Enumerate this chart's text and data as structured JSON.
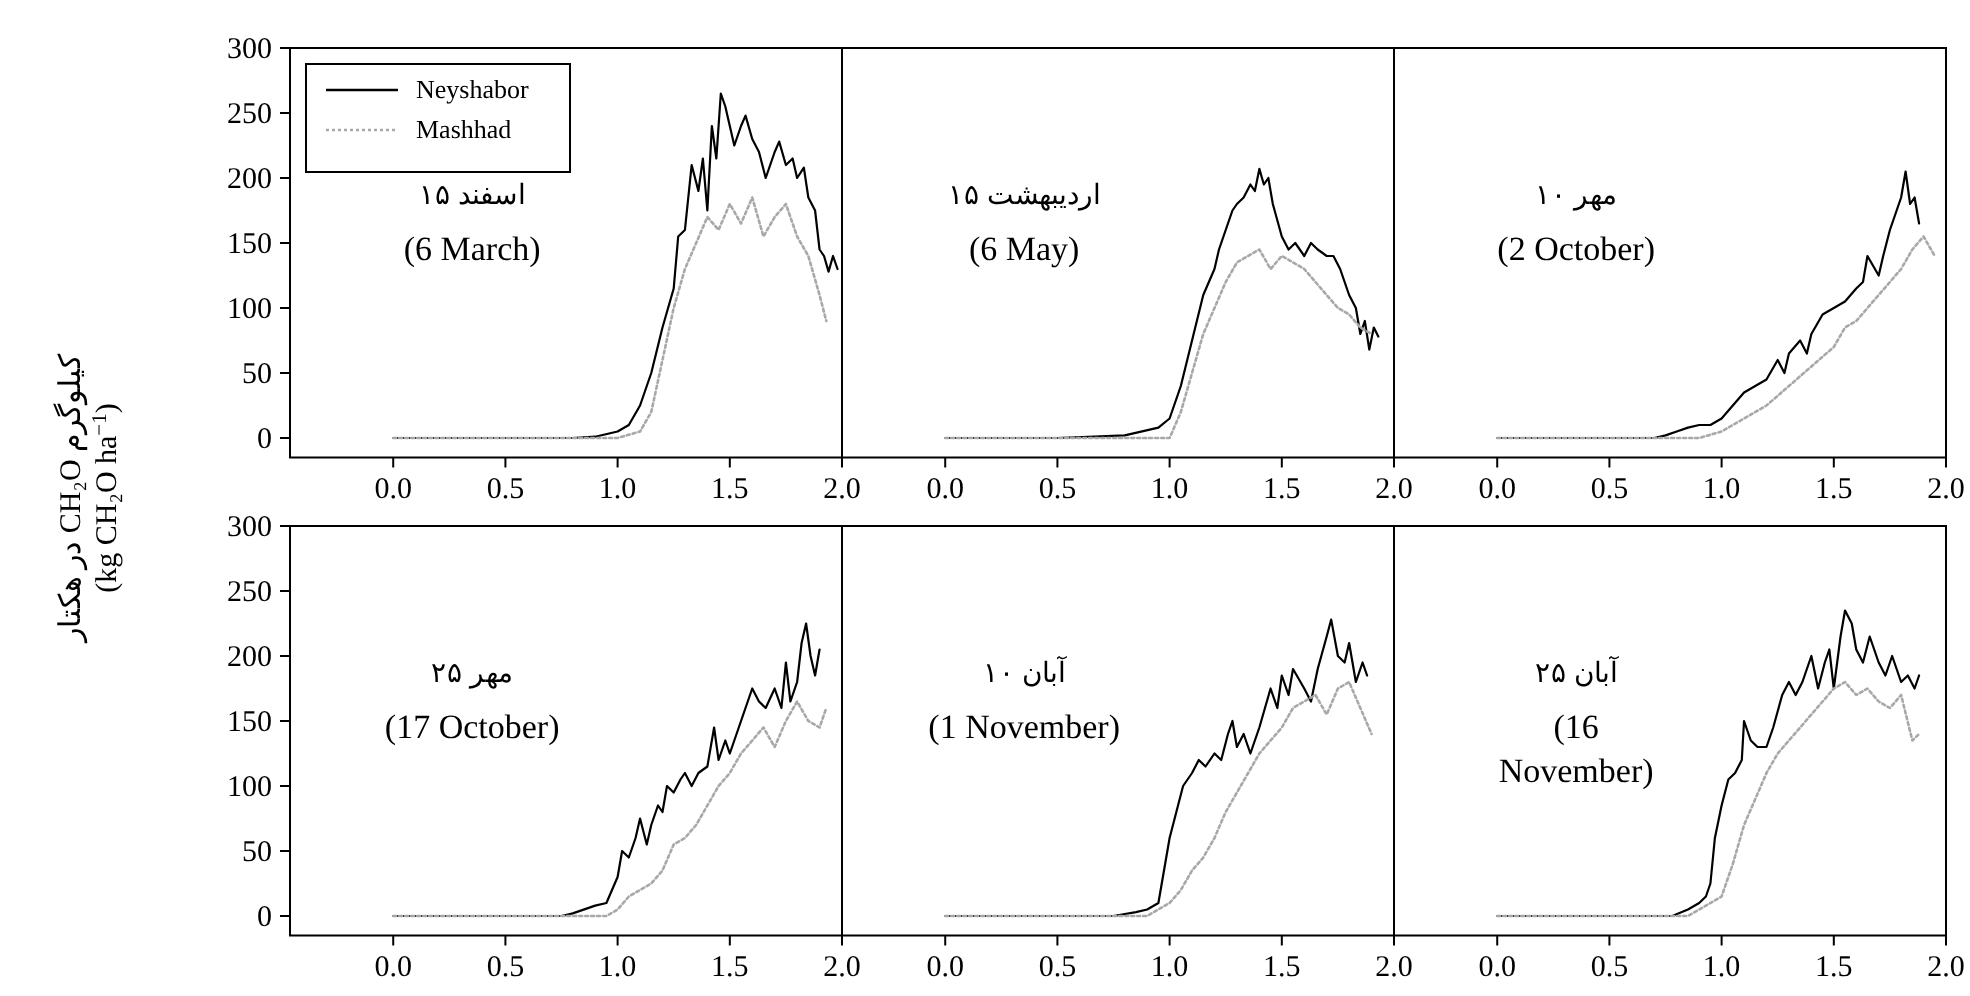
{
  "chart_data": [
    {
      "type": "line",
      "ylabel": "کیلوگرم CH₂O در هکتار\n(kg CH₂O ha$^{−1}$)",
      "xlim": [
        -0.46,
        2.0
      ],
      "ylim": [
        -15,
        300
      ],
      "xticks": [
        {
          "value": 0,
          "label": "0.0"
        },
        {
          "value": 0.5,
          "label": "0.5"
        },
        {
          "value": 1,
          "label": "1.0"
        },
        {
          "value": 1.5,
          "label": "1.5"
        },
        {
          "value": 2,
          "label": "2.0"
        }
      ],
      "yticks": [
        0,
        50,
        100,
        150,
        200,
        250,
        300
      ],
      "legend": "top left",
      "annotations": [
        "۱۵ اسفند",
        "(6 March)"
      ],
      "series": [
        {
          "name": "Neyshabor",
          "color": "#000000",
          "line_style": "solid",
          "x": [
            0,
            0.8,
            0.9,
            1.0,
            1.05,
            1.1,
            1.15,
            1.2,
            1.25,
            1.27,
            1.3,
            1.33,
            1.36,
            1.38,
            1.4,
            1.42,
            1.44,
            1.46,
            1.48,
            1.5,
            1.52,
            1.55,
            1.57,
            1.6,
            1.63,
            1.66,
            1.7,
            1.72,
            1.75,
            1.78,
            1.8,
            1.83,
            1.85,
            1.88,
            1.9,
            1.92,
            1.94,
            1.96,
            1.98
          ],
          "values": [
            0,
            0,
            1,
            5,
            10,
            25,
            50,
            85,
            115,
            155,
            160,
            210,
            190,
            215,
            175,
            240,
            215,
            265,
            255,
            240,
            225,
            240,
            248,
            230,
            220,
            200,
            220,
            228,
            210,
            215,
            200,
            208,
            185,
            175,
            145,
            140,
            128,
            140,
            130
          ]
        },
        {
          "name": "Mashhad",
          "color": "#a8a8a8",
          "line_style": "dotted",
          "x": [
            0,
            1.0,
            1.1,
            1.15,
            1.2,
            1.25,
            1.3,
            1.35,
            1.4,
            1.45,
            1.5,
            1.55,
            1.6,
            1.65,
            1.7,
            1.75,
            1.8,
            1.85,
            1.9,
            1.93
          ],
          "values": [
            0,
            0,
            5,
            20,
            60,
            100,
            130,
            150,
            170,
            160,
            180,
            165,
            185,
            155,
            170,
            180,
            155,
            140,
            110,
            90
          ]
        }
      ]
    },
    {
      "type": "line",
      "tick_labels": "x",
      "xlim": [
        -0.46,
        2.0
      ],
      "ylim": [
        -15,
        300
      ],
      "xticks": [
        {
          "value": 0,
          "label": "0.0"
        },
        {
          "value": 0.5,
          "label": "0.5"
        },
        {
          "value": 1,
          "label": "1.0"
        },
        {
          "value": 1.5,
          "label": "1.5"
        },
        {
          "value": 2,
          "label": "2.0"
        }
      ],
      "yticks": [
        0,
        50,
        100,
        150,
        200,
        250,
        300
      ],
      "annotations": [
        "۱۵ اردیبهشت",
        "(6 May)"
      ],
      "series": [
        {
          "color": "#000000",
          "line_style": "solid",
          "x": [
            0,
            0.5,
            0.8,
            0.95,
            1.0,
            1.05,
            1.1,
            1.15,
            1.2,
            1.22,
            1.25,
            1.28,
            1.3,
            1.33,
            1.36,
            1.38,
            1.4,
            1.42,
            1.44,
            1.46,
            1.5,
            1.53,
            1.56,
            1.6,
            1.63,
            1.66,
            1.7,
            1.73,
            1.76,
            1.8,
            1.83,
            1.85,
            1.87,
            1.89,
            1.91,
            1.93
          ],
          "values": [
            0,
            0,
            2,
            8,
            15,
            40,
            75,
            110,
            130,
            145,
            160,
            175,
            180,
            185,
            195,
            190,
            207,
            195,
            200,
            180,
            155,
            145,
            150,
            140,
            150,
            145,
            140,
            140,
            130,
            110,
            100,
            80,
            90,
            68,
            85,
            78
          ]
        },
        {
          "color": "#a8a8a8",
          "line_style": "dotted",
          "x": [
            0,
            1.0,
            1.05,
            1.1,
            1.15,
            1.2,
            1.25,
            1.3,
            1.35,
            1.4,
            1.45,
            1.5,
            1.55,
            1.6,
            1.65,
            1.7,
            1.75,
            1.8,
            1.85,
            1.9
          ],
          "values": [
            0,
            0,
            20,
            50,
            80,
            100,
            120,
            135,
            140,
            145,
            130,
            140,
            135,
            130,
            120,
            110,
            100,
            95,
            85,
            80
          ]
        }
      ]
    },
    {
      "type": "line",
      "tick_labels": "x",
      "xlim": [
        -0.46,
        2.0
      ],
      "ylim": [
        -15,
        300
      ],
      "xticks": [
        {
          "value": 0,
          "label": "0.0"
        },
        {
          "value": 0.5,
          "label": "0.5"
        },
        {
          "value": 1,
          "label": "1.0"
        },
        {
          "value": 1.5,
          "label": "1.5"
        },
        {
          "value": 2,
          "label": "2.0"
        }
      ],
      "yticks": [
        0,
        50,
        100,
        150,
        200,
        250,
        300
      ],
      "annotations": [
        "۱۰ مهر",
        "(2 October)"
      ],
      "series": [
        {
          "color": "#000000",
          "line_style": "solid",
          "x": [
            0,
            0.7,
            0.75,
            0.8,
            0.85,
            0.9,
            0.95,
            1.0,
            1.05,
            1.1,
            1.15,
            1.2,
            1.25,
            1.28,
            1.3,
            1.35,
            1.38,
            1.4,
            1.45,
            1.5,
            1.55,
            1.6,
            1.63,
            1.65,
            1.7,
            1.72,
            1.75,
            1.78,
            1.8,
            1.82,
            1.84,
            1.86,
            1.88
          ],
          "values": [
            0,
            0,
            2,
            5,
            8,
            10,
            10,
            15,
            25,
            35,
            40,
            45,
            60,
            50,
            65,
            75,
            65,
            80,
            95,
            100,
            105,
            115,
            120,
            140,
            125,
            140,
            160,
            175,
            185,
            205,
            180,
            185,
            165
          ]
        },
        {
          "color": "#a8a8a8",
          "line_style": "dotted",
          "x": [
            0,
            0.9,
            1.0,
            1.05,
            1.1,
            1.2,
            1.3,
            1.4,
            1.5,
            1.55,
            1.6,
            1.65,
            1.7,
            1.75,
            1.8,
            1.85,
            1.9,
            1.95
          ],
          "values": [
            0,
            0,
            5,
            10,
            15,
            25,
            40,
            55,
            70,
            85,
            90,
            100,
            110,
            120,
            130,
            145,
            155,
            140
          ]
        }
      ]
    },
    {
      "type": "line",
      "xlim": [
        -0.46,
        2.0
      ],
      "ylim": [
        -15,
        300
      ],
      "xticks": [
        {
          "value": 0,
          "label": "0.0"
        },
        {
          "value": 0.5,
          "label": "0.5"
        },
        {
          "value": 1,
          "label": "1.0"
        },
        {
          "value": 1.5,
          "label": "1.5"
        },
        {
          "value": 2,
          "label": "2.0"
        }
      ],
      "yticks": [
        0,
        50,
        100,
        150,
        200,
        250,
        300
      ],
      "annotations": [
        "۲۵ مهر",
        "(17 October)"
      ],
      "series": [
        {
          "color": "#000000",
          "line_style": "solid",
          "x": [
            0,
            0.75,
            0.8,
            0.9,
            0.95,
            1.0,
            1.02,
            1.05,
            1.08,
            1.1,
            1.13,
            1.15,
            1.18,
            1.2,
            1.22,
            1.25,
            1.28,
            1.3,
            1.33,
            1.36,
            1.4,
            1.43,
            1.45,
            1.48,
            1.5,
            1.53,
            1.55,
            1.6,
            1.63,
            1.66,
            1.7,
            1.73,
            1.75,
            1.77,
            1.8,
            1.82,
            1.84,
            1.86,
            1.88,
            1.9
          ],
          "values": [
            0,
            0,
            2,
            8,
            10,
            30,
            50,
            45,
            60,
            75,
            55,
            70,
            85,
            80,
            100,
            95,
            105,
            110,
            100,
            110,
            115,
            145,
            120,
            135,
            125,
            140,
            150,
            175,
            165,
            160,
            175,
            160,
            195,
            165,
            180,
            210,
            225,
            200,
            185,
            205
          ]
        },
        {
          "color": "#a8a8a8",
          "line_style": "dotted",
          "x": [
            0,
            0.95,
            1.0,
            1.05,
            1.1,
            1.15,
            1.2,
            1.25,
            1.3,
            1.35,
            1.4,
            1.45,
            1.5,
            1.55,
            1.6,
            1.65,
            1.7,
            1.75,
            1.8,
            1.85,
            1.9,
            1.93
          ],
          "values": [
            0,
            0,
            5,
            15,
            20,
            25,
            35,
            55,
            60,
            70,
            85,
            100,
            110,
            125,
            135,
            145,
            130,
            150,
            165,
            150,
            145,
            160
          ]
        }
      ]
    },
    {
      "type": "line",
      "tick_labels": "x",
      "xlim": [
        -0.46,
        2.0
      ],
      "ylim": [
        -15,
        300
      ],
      "xticks": [
        {
          "value": 0,
          "label": "0.0"
        },
        {
          "value": 0.5,
          "label": "0.5"
        },
        {
          "value": 1,
          "label": "1.0"
        },
        {
          "value": 1.5,
          "label": "1.5"
        },
        {
          "value": 2,
          "label": "2.0"
        }
      ],
      "yticks": [
        0,
        50,
        100,
        150,
        200,
        250,
        300
      ],
      "annotations": [
        "۱۰ آبان",
        "(1 November)"
      ],
      "series": [
        {
          "color": "#000000",
          "line_style": "solid",
          "x": [
            0,
            0.75,
            0.85,
            0.9,
            0.95,
            0.98,
            1.0,
            1.03,
            1.06,
            1.1,
            1.13,
            1.16,
            1.2,
            1.23,
            1.26,
            1.28,
            1.3,
            1.33,
            1.36,
            1.4,
            1.45,
            1.48,
            1.5,
            1.53,
            1.55,
            1.6,
            1.63,
            1.66,
            1.7,
            1.72,
            1.75,
            1.78,
            1.8,
            1.83,
            1.86,
            1.88
          ],
          "values": [
            0,
            0,
            3,
            5,
            10,
            40,
            60,
            80,
            100,
            110,
            120,
            115,
            125,
            120,
            140,
            150,
            130,
            140,
            125,
            145,
            175,
            160,
            185,
            170,
            190,
            175,
            165,
            190,
            215,
            228,
            200,
            195,
            210,
            180,
            195,
            185
          ]
        },
        {
          "color": "#a8a8a8",
          "line_style": "dotted",
          "x": [
            0,
            0.9,
            1.0,
            1.05,
            1.1,
            1.15,
            1.2,
            1.25,
            1.3,
            1.35,
            1.4,
            1.45,
            1.5,
            1.55,
            1.6,
            1.65,
            1.7,
            1.75,
            1.8,
            1.85,
            1.9
          ],
          "values": [
            0,
            0,
            10,
            20,
            35,
            45,
            60,
            80,
            95,
            110,
            125,
            135,
            145,
            160,
            165,
            170,
            155,
            175,
            180,
            160,
            140
          ]
        }
      ]
    },
    {
      "type": "line",
      "tick_labels": "x",
      "xlim": [
        -0.46,
        2.0
      ],
      "ylim": [
        -15,
        300
      ],
      "xticks": [
        {
          "value": 0,
          "label": "0.0"
        },
        {
          "value": 0.5,
          "label": "0.5"
        },
        {
          "value": 1,
          "label": "1.0"
        },
        {
          "value": 1.5,
          "label": "1.5"
        },
        {
          "value": 2,
          "label": "2.0"
        }
      ],
      "yticks": [
        0,
        50,
        100,
        150,
        200,
        250,
        300
      ],
      "annotations": [
        "۲۵ آبان",
        "(16\nNovember)"
      ],
      "series": [
        {
          "color": "#000000",
          "line_style": "solid",
          "x": [
            0,
            0.78,
            0.85,
            0.9,
            0.93,
            0.95,
            0.97,
            1.0,
            1.03,
            1.06,
            1.09,
            1.1,
            1.13,
            1.16,
            1.2,
            1.23,
            1.27,
            1.3,
            1.33,
            1.36,
            1.4,
            1.43,
            1.46,
            1.48,
            1.5,
            1.53,
            1.55,
            1.58,
            1.6,
            1.63,
            1.66,
            1.7,
            1.73,
            1.76,
            1.8,
            1.83,
            1.86,
            1.88
          ],
          "values": [
            0,
            0,
            5,
            10,
            15,
            25,
            60,
            85,
            105,
            110,
            120,
            150,
            135,
            130,
            130,
            145,
            170,
            180,
            170,
            180,
            200,
            175,
            195,
            205,
            175,
            215,
            235,
            225,
            205,
            195,
            215,
            195,
            185,
            200,
            180,
            185,
            175,
            185
          ]
        },
        {
          "color": "#a8a8a8",
          "line_style": "dotted",
          "x": [
            0,
            0.85,
            0.9,
            1.0,
            1.05,
            1.1,
            1.15,
            1.2,
            1.25,
            1.3,
            1.35,
            1.4,
            1.45,
            1.5,
            1.55,
            1.6,
            1.65,
            1.7,
            1.75,
            1.8,
            1.85,
            1.88
          ],
          "values": [
            0,
            0,
            5,
            15,
            40,
            70,
            90,
            110,
            125,
            135,
            145,
            155,
            165,
            175,
            180,
            170,
            175,
            165,
            160,
            170,
            135,
            140
          ]
        }
      ]
    }
  ]
}
